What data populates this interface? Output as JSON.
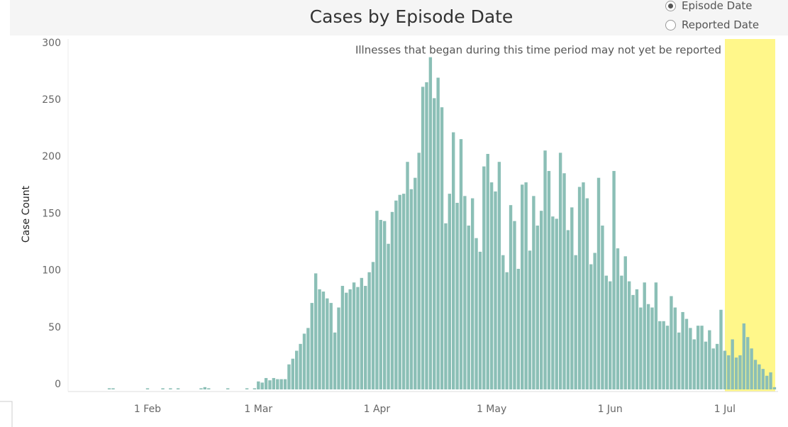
{
  "chart_data": {
    "type": "bar",
    "title": "Cases by Episode Date",
    "y_label": "Case Count",
    "annotation": "Illnesses that began during this time period may not yet be reported",
    "color": "#8bbfb6",
    "grid": false,
    "ylim": [
      0,
      308
    ],
    "yticks": [
      0,
      50,
      100,
      150,
      200,
      250,
      300
    ],
    "categories": [
      null,
      null,
      null,
      null,
      null,
      null,
      null,
      null,
      null,
      null,
      null,
      null,
      "1 Feb",
      null,
      null,
      null,
      null,
      null,
      null,
      null,
      null,
      null,
      null,
      null,
      null,
      null,
      null,
      null,
      null,
      null,
      null,
      null,
      null,
      null,
      null,
      null,
      null,
      null,
      null,
      null,
      null,
      "1 Mar",
      null,
      null,
      null,
      null,
      null,
      null,
      null,
      null,
      null,
      null,
      null,
      null,
      null,
      null,
      null,
      null,
      null,
      null,
      null,
      null,
      null,
      null,
      null,
      null,
      null,
      null,
      null,
      null,
      null,
      null,
      "1 Apr",
      null,
      null,
      null,
      null,
      null,
      null,
      null,
      null,
      null,
      null,
      null,
      null,
      null,
      null,
      null,
      null,
      null,
      null,
      null,
      null,
      null,
      null,
      null,
      null,
      null,
      null,
      null,
      null,
      null,
      "1 May",
      null,
      null,
      null,
      null,
      null,
      null,
      null,
      null,
      null,
      null,
      null,
      null,
      null,
      null,
      null,
      null,
      null,
      null,
      null,
      null,
      null,
      null,
      null,
      null,
      null,
      null,
      null,
      null,
      null,
      null,
      "1 Jun",
      null,
      null,
      null,
      null,
      null,
      null,
      null,
      null,
      null,
      null,
      null,
      null,
      null,
      null,
      null,
      null,
      null,
      null,
      null,
      null,
      null,
      null,
      null,
      null,
      null,
      null,
      null,
      null,
      null,
      "1 Jul",
      null,
      null,
      null,
      null,
      null,
      null,
      null,
      null,
      null,
      null,
      null,
      null,
      null
    ],
    "values": [
      0,
      0,
      1,
      1,
      0,
      0,
      0,
      0,
      0,
      0,
      0,
      0,
      1,
      0,
      0,
      0,
      1,
      0,
      1,
      0,
      1,
      0,
      0,
      0,
      0,
      0,
      1,
      2,
      1,
      0,
      0,
      0,
      0,
      1,
      0,
      0,
      0,
      0,
      1,
      0,
      1,
      7,
      6,
      10,
      8,
      10,
      9,
      9,
      9,
      22,
      27,
      34,
      40,
      49,
      54,
      76,
      102,
      88,
      86,
      80,
      76,
      50,
      72,
      91,
      85,
      88,
      94,
      90,
      98,
      91,
      103,
      112,
      157,
      149,
      148,
      128,
      156,
      166,
      171,
      172,
      200,
      176,
      186,
      208,
      266,
      270,
      292,
      256,
      274,
      248,
      146,
      172,
      226,
      164,
      220,
      170,
      144,
      168,
      133,
      121,
      196,
      207,
      182,
      174,
      200,
      118,
      103,
      162,
      148,
      106,
      180,
      182,
      122,
      170,
      144,
      157,
      210,
      192,
      152,
      150,
      208,
      190,
      140,
      160,
      118,
      178,
      182,
      168,
      110,
      120,
      186,
      144,
      100,
      95,
      192,
      124,
      100,
      117,
      95,
      83,
      88,
      72,
      94,
      75,
      72,
      94,
      60,
      60,
      56,
      82,
      72,
      50,
      68,
      62,
      54,
      44,
      56,
      56,
      42,
      52,
      36,
      40,
      70,
      34,
      30,
      44,
      28,
      30,
      58,
      46,
      36,
      26,
      22,
      18,
      12,
      15,
      2
    ]
  },
  "controls": {
    "options": [
      "Episode Date",
      "Reported Date"
    ],
    "selected": "Episode Date"
  }
}
